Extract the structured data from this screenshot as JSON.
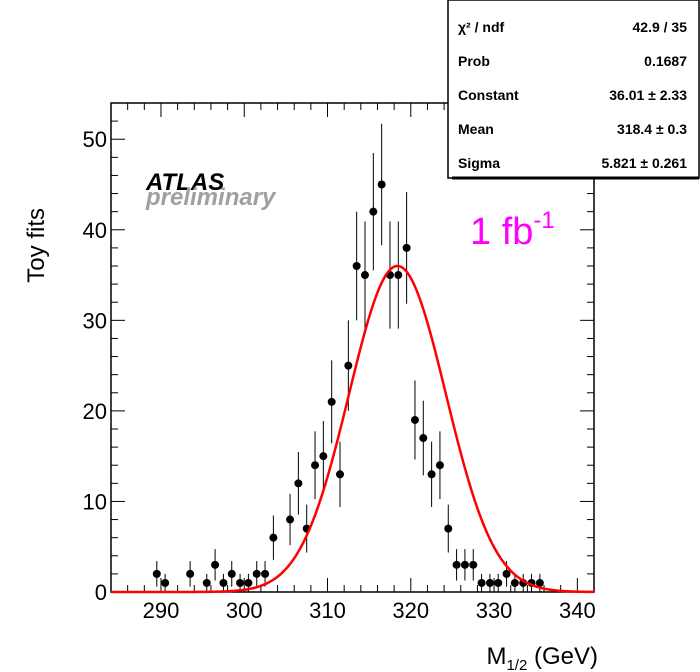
{
  "chart_data": {
    "type": "scatter",
    "xlabel": "M",
    "xlabel_sub": "1/2",
    "xlabel_unit": " (GeV)",
    "ylabel": "Toy fits",
    "xlim": [
      284,
      342
    ],
    "ylim": [
      0,
      54
    ],
    "xticks": [
      290,
      300,
      310,
      320,
      330,
      340
    ],
    "yticks": [
      0,
      10,
      20,
      30,
      40,
      50
    ],
    "grid": false,
    "series": [
      {
        "kind": "histogram-points",
        "color": "#000000",
        "x": [
          289.5,
          290.5,
          293.5,
          295.5,
          296.5,
          297.5,
          298.5,
          299.5,
          300.5,
          301.5,
          302.5,
          303.5,
          305.5,
          306.5,
          307.5,
          308.5,
          309.5,
          310.5,
          311.5,
          312.5,
          313.5,
          314.5,
          315.5,
          316.5,
          317.5,
          318.5,
          319.5,
          320.5,
          321.5,
          322.5,
          323.5,
          324.5,
          325.5,
          326.5,
          327.5,
          328.5,
          329.5,
          330.5,
          331.5,
          332.5,
          333.5,
          334.5,
          335.5
        ],
        "y": [
          2,
          1,
          2,
          1,
          3,
          1,
          2,
          1,
          1,
          2,
          2,
          6,
          8,
          12,
          7,
          14,
          15,
          21,
          13,
          25,
          36,
          35,
          42,
          45,
          35,
          35,
          38,
          19,
          17,
          13,
          14,
          7,
          3,
          3,
          3,
          1,
          1,
          1,
          2,
          1,
          1,
          1,
          1
        ]
      },
      {
        "kind": "gaussian-fit",
        "color": "#ff0000",
        "constant": 36.01,
        "mean": 318.4,
        "sigma": 5.821
      }
    ],
    "annotations": {
      "experiment": "ATLAS",
      "status": "preliminary",
      "luminosity": "1 fb",
      "luminosity_exp": "-1"
    },
    "stats_box": {
      "rows": [
        {
          "label": "χ² / ndf",
          "value": "42.9 / 35"
        },
        {
          "label": "Prob",
          "value": "0.1687"
        },
        {
          "label": "Constant",
          "value": "36.01 ± 2.33"
        },
        {
          "label": "Mean",
          "value": "318.4 ± 0.3"
        },
        {
          "label": "Sigma",
          "value": "5.821 ± 0.261"
        }
      ]
    }
  }
}
